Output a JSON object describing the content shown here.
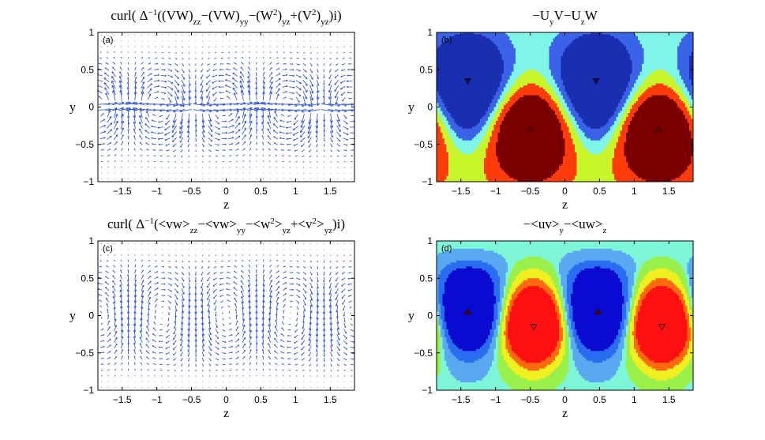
{
  "panels": [
    {
      "id": "a",
      "letter": "(a)",
      "kind": "quiver",
      "title_parts": [
        "curl( Δ",
        "−1",
        "((VW)",
        "zz",
        "−(VW)",
        "yy",
        "−(W",
        "2",
        ")",
        "yz",
        "+(V",
        "2",
        ")",
        "yz",
        ")i)"
      ],
      "arrow_color": "#3b5bdb"
    },
    {
      "id": "b",
      "letter": "(b)",
      "kind": "contour",
      "title_parts": [
        "−U",
        "y",
        "V−U",
        "z",
        "W"
      ]
    },
    {
      "id": "c",
      "letter": "(c)",
      "kind": "quiver",
      "title_parts": [
        "curl( Δ",
        "−1",
        "(<vw>",
        "zz",
        "−<vw>",
        "yy",
        "−<w",
        "2",
        ">",
        "yz",
        "+<v",
        "2",
        ">",
        "yz",
        ")i)"
      ],
      "arrow_color": "#3b5bdb"
    },
    {
      "id": "d",
      "letter": "(d)",
      "kind": "contour",
      "title_parts": [
        "−<uv>",
        "y",
        "−<uw>",
        "z"
      ]
    }
  ],
  "chart_data": [
    {
      "type": "quiver",
      "panel": "(a)",
      "xlabel": "z",
      "ylabel": "y",
      "xlim": [
        -1.85,
        1.85
      ],
      "ylim": [
        -1,
        1
      ],
      "xticks": [
        "−1.5",
        "−1",
        "−0.5",
        "0",
        "0.5",
        "1",
        "1.5"
      ],
      "xtick_values": [
        -1.5,
        -1,
        -0.5,
        0,
        0.5,
        1,
        1.5
      ],
      "yticks": [
        "−1",
        "−0.5",
        "0",
        "0.5",
        "1"
      ],
      "ytick_values": [
        -1,
        -0.5,
        0,
        0.5,
        1
      ],
      "period_z": 1.85,
      "pattern": "alternating vertical jets with strong horizontal flow near y = 0"
    },
    {
      "type": "heatmap",
      "panel": "(b)",
      "xlabel": "z",
      "ylabel": "y",
      "xlim": [
        -1.85,
        1.85
      ],
      "ylim": [
        -1,
        1
      ],
      "xticks": [
        "−1.5",
        "−1",
        "−0.5",
        "0",
        "0.5",
        "1",
        "1.5"
      ],
      "xtick_values": [
        -1.5,
        -1,
        -0.5,
        0,
        0.5,
        1,
        1.5
      ],
      "yticks": [
        "−1",
        "−0.5",
        "0",
        "0.5",
        "1"
      ],
      "ytick_values": [
        -1,
        -0.5,
        0,
        0.5,
        1
      ],
      "extrema": [
        {
          "kind": "minimum",
          "z": -1.4,
          "y": 0.35
        },
        {
          "kind": "maximum",
          "z": -0.5,
          "y": -0.3
        },
        {
          "kind": "minimum",
          "z": 0.45,
          "y": 0.35
        },
        {
          "kind": "maximum",
          "z": 1.35,
          "y": -0.3
        }
      ],
      "levels_colors": [
        "#1a2fb0",
        "#3a63e8",
        "#7ff5e8",
        "#c8f52a",
        "#ff3c0a",
        "#7a0000"
      ]
    },
    {
      "type": "quiver",
      "panel": "(c)",
      "xlabel": "z",
      "ylabel": "y",
      "xlim": [
        -1.85,
        1.85
      ],
      "ylim": [
        -1,
        1
      ],
      "xticks": [
        "−1.5",
        "−1",
        "−0.5",
        "0",
        "0.5",
        "1",
        "1.5"
      ],
      "xtick_values": [
        -1.5,
        -1,
        -0.5,
        0,
        0.5,
        1,
        1.5
      ],
      "yticks": [
        "−1",
        "−0.5",
        "0",
        "0.5",
        "1"
      ],
      "ytick_values": [
        -1,
        -0.5,
        0,
        0.5,
        1
      ],
      "period_z": 1.85,
      "pattern": "counter-rotating vortex cells centred near y = 0"
    },
    {
      "type": "heatmap",
      "panel": "(d)",
      "xlabel": "z",
      "ylabel": "y",
      "xlim": [
        -1.85,
        1.85
      ],
      "ylim": [
        -1,
        1
      ],
      "xticks": [
        "−1.5",
        "−1",
        "−0.5",
        "0",
        "0.5",
        "1",
        "1.5"
      ],
      "xtick_values": [
        -1.5,
        -1,
        -0.5,
        0,
        0.5,
        1,
        1.5
      ],
      "yticks": [
        "−1",
        "−0.5",
        "0",
        "0.5",
        "1"
      ],
      "ytick_values": [
        -1,
        -0.5,
        0,
        0.5,
        1
      ],
      "extrema": [
        {
          "kind": "maximum",
          "z": -1.4,
          "y": 0.05
        },
        {
          "kind": "minimum",
          "z": -0.45,
          "y": -0.15
        },
        {
          "kind": "maximum",
          "z": 0.48,
          "y": 0.05
        },
        {
          "kind": "minimum",
          "z": 1.4,
          "y": -0.15
        }
      ],
      "levels_colors": [
        "#0a0ad0",
        "#2a6df0",
        "#5aa8f0",
        "#7ff5d8",
        "#9af04a",
        "#f0f020",
        "#ff6a10",
        "#ff1010"
      ]
    }
  ]
}
